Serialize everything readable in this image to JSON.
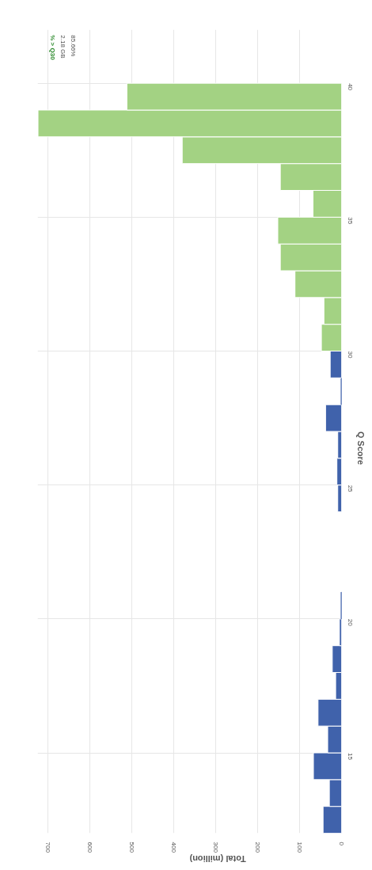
{
  "chart_data": {
    "type": "histogram",
    "orientation": "horizontal",
    "xlabel": "Total (million)",
    "ylabel": "Q Score",
    "bins": [
      12,
      13,
      14,
      15,
      16,
      17,
      18,
      19,
      20,
      21,
      22,
      23,
      24,
      25,
      26,
      27,
      28,
      29,
      30,
      31,
      32,
      33,
      34,
      35,
      36,
      37,
      38,
      39,
      40
    ],
    "values": [
      44,
      29,
      67,
      33,
      56,
      14,
      22,
      5,
      1,
      0,
      0,
      0,
      9,
      11,
      9,
      38,
      1,
      27,
      48,
      42,
      111,
      146,
      152,
      68,
      146,
      380,
      724,
      512
    ],
    "colors": [
      "#4062ab",
      "#4062ab",
      "#4062ab",
      "#4062ab",
      "#4062ab",
      "#4062ab",
      "#4062ab",
      "#4062ab",
      "#4062ab",
      "#4062ab",
      "#4062ab",
      "#4062ab",
      "#4062ab",
      "#4062ab",
      "#4062ab",
      "#4062ab",
      "#4062ab",
      "#4062ab",
      "#a3d283",
      "#a3d283",
      "#a3d283",
      "#a3d283",
      "#a3d283",
      "#a3d283",
      "#a3d283",
      "#a3d283",
      "#a3d283",
      "#a3d283"
    ],
    "xlim": [
      725,
      0
    ],
    "xticks": [
      0,
      100,
      200,
      300,
      400,
      500,
      600,
      700
    ],
    "ylim": [
      12,
      42
    ],
    "yticks": [
      15,
      20,
      25,
      30,
      35,
      40
    ],
    "grid": true,
    "annotations": [
      "% > Q30",
      "2.18 GB",
      "85.66%"
    ]
  }
}
